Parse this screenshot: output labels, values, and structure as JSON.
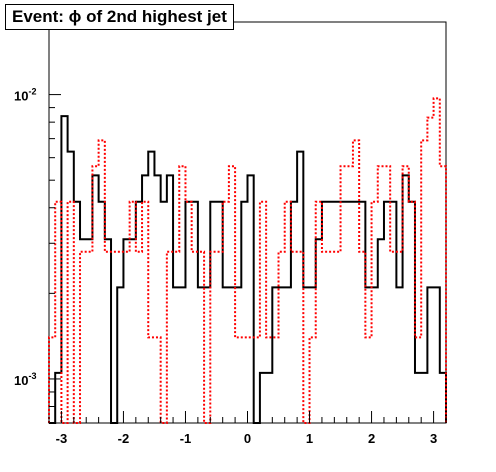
{
  "chart_data": {
    "type": "step",
    "title": "Event: ϕ of 2nd highest jet",
    "xlim": [
      -3.2,
      3.2
    ],
    "ylim": [
      0.0007,
      0.018
    ],
    "y_scale": "log",
    "grid": false,
    "legend": "none",
    "bins": 64,
    "x_ticks": [
      -3,
      -2,
      -1,
      0,
      1,
      2,
      3
    ],
    "x_tick_labels": [
      "-3",
      "-2",
      "-1",
      "0",
      "1",
      "2",
      "3"
    ],
    "y_tick_labels": [
      {
        "value": 0.01,
        "base": "10",
        "exp": "-2"
      },
      {
        "value": 0.001,
        "base": "10",
        "exp": "-3"
      }
    ],
    "series": [
      {
        "color": "#000000",
        "style": "solid",
        "values": [
          0,
          0.00105,
          0.0084,
          0.0063,
          0.0042,
          0.0031,
          0.0031,
          0.0052,
          0.0042,
          0.0031,
          0,
          0.0021,
          0.0031,
          0.0031,
          0.0042,
          0.0052,
          0.0063,
          0.0052,
          0.0042,
          0.0052,
          0.0021,
          0.0021,
          0.0042,
          0.0042,
          0.0021,
          0.0021,
          0.0042,
          0.0042,
          0.0021,
          0.0021,
          0.0021,
          0.0042,
          0.0052,
          0,
          0.00105,
          0.00105,
          0.0021,
          0.0021,
          0.0021,
          0.0042,
          0.0063,
          0.0021,
          0.0021,
          0.0031,
          0.0042,
          0.0042,
          0.0042,
          0.0042,
          0.0042,
          0.0042,
          0.0042,
          0.0021,
          0.0021,
          0.0031,
          0.0042,
          0.0042,
          0.0021,
          0.0052,
          0.0042,
          0.00105,
          0.00105,
          0.0021,
          0.0021,
          0.00105
        ]
      },
      {
        "color": "#ff0000",
        "style": "dotted",
        "values": [
          0.0014,
          0.0042,
          0,
          0.0042,
          0,
          0.0028,
          0.0028,
          0.0056,
          0.0069,
          0.0028,
          0.0028,
          0.0028,
          0.0028,
          0.0042,
          0.0028,
          0.0042,
          0.0014,
          0.0014,
          0,
          0.0028,
          0.0028,
          0.0056,
          0.0042,
          0.0028,
          0.0028,
          0,
          0.0028,
          0.0028,
          0.0042,
          0.0056,
          0.0014,
          0.0014,
          0.0014,
          0.0014,
          0.0042,
          0.0014,
          0.0014,
          0.0028,
          0.0042,
          0.0028,
          0.0028,
          0,
          0.0014,
          0.0042,
          0.0028,
          0.0028,
          0.0028,
          0.0056,
          0.0056,
          0.0069,
          0.0028,
          0.0014,
          0.0042,
          0.0056,
          0.0056,
          0.0028,
          0.0028,
          0.0056,
          0.0042,
          0.0014,
          0.0069,
          0.0083,
          0.0097,
          0.0056
        ]
      }
    ]
  }
}
